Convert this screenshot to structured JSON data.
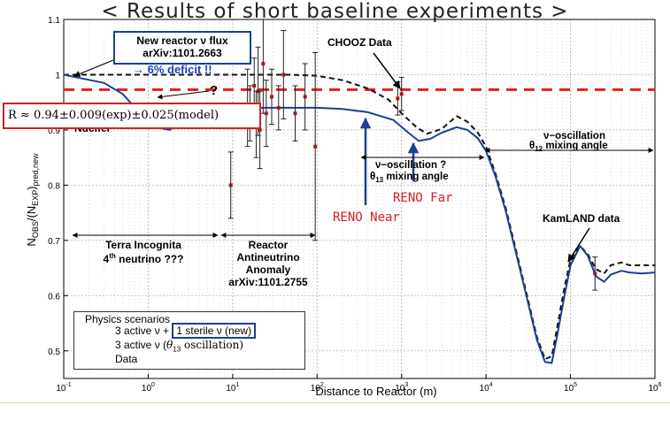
{
  "slide_title": "< Results of short baseline experiments >",
  "chart_data": {
    "type": "line",
    "title": "",
    "xlabel": "Distance to Reactor (m)",
    "ylabel_main": "N",
    "ylabel_sub1": "OBS",
    "ylabel_mid": "/(N",
    "ylabel_sub2": "EXP",
    "ylabel_sub3": ")",
    "ylabel_sub4": "pred,new",
    "xscale": "log",
    "xlim": [
      0.1,
      1000000
    ],
    "ylim": [
      0.45,
      1.1
    ],
    "grid": true,
    "x_ticks": [
      0.1,
      1,
      10,
      100,
      1000,
      10000,
      100000,
      1000000
    ],
    "x_tick_bases": [
      "10",
      "10",
      "10",
      "10",
      "10",
      "10",
      "10",
      "10"
    ],
    "x_tick_exps": [
      "-1",
      "0",
      "1",
      "2",
      "3",
      "4",
      "5",
      "6"
    ],
    "y_ticks": [
      0.5,
      0.6,
      0.7,
      0.8,
      0.9,
      1.0,
      1.1
    ],
    "y_tick_labels": [
      "0.5",
      "0.6",
      "0.7",
      "0.8",
      "0.9",
      "1",
      "1.1"
    ],
    "reference_line_y": 0.973,
    "series": [
      {
        "name": "3 active ν + 1 sterile ν (new)",
        "color": "#1c3f94",
        "style": "solid",
        "x": [
          0.1,
          0.3,
          0.5,
          0.8,
          1.2,
          1.8,
          2.5,
          4,
          6,
          10,
          20,
          50,
          100,
          200,
          400,
          800,
          1200,
          1600,
          2200,
          3000,
          4500,
          6000,
          8000,
          10000,
          13000,
          17000,
          22000,
          30000,
          40000,
          50000,
          60000,
          70000,
          85000,
          100000,
          130000,
          160000,
          200000,
          250000,
          300000,
          400000,
          500000,
          700000,
          1000000
        ],
        "y": [
          1.0,
          0.985,
          0.965,
          0.93,
          0.905,
          0.9,
          0.915,
          0.932,
          0.937,
          0.94,
          0.94,
          0.94,
          0.94,
          0.938,
          0.932,
          0.918,
          0.895,
          0.88,
          0.884,
          0.895,
          0.905,
          0.9,
          0.885,
          0.862,
          0.815,
          0.755,
          0.685,
          0.6,
          0.52,
          0.48,
          0.478,
          0.53,
          0.6,
          0.655,
          0.69,
          0.672,
          0.635,
          0.625,
          0.638,
          0.645,
          0.642,
          0.64,
          0.642
        ]
      },
      {
        "name": "3 active ν (θ13 oscillation)",
        "color": "#111111",
        "style": "dashed",
        "x": [
          0.1,
          0.5,
          1,
          5,
          10,
          50,
          100,
          200,
          400,
          700,
          1000,
          1500,
          2000,
          3000,
          4500,
          6000,
          8000,
          10000,
          13000,
          17000,
          22000,
          30000,
          40000,
          50000,
          60000,
          70000,
          85000,
          100000,
          130000,
          160000,
          200000,
          250000,
          300000,
          400000,
          500000,
          700000,
          1000000
        ],
        "y": [
          1.0,
          1.0,
          1.0,
          1.0,
          1.0,
          1.0,
          0.998,
          0.99,
          0.975,
          0.955,
          0.93,
          0.905,
          0.893,
          0.902,
          0.925,
          0.915,
          0.895,
          0.87,
          0.82,
          0.76,
          0.69,
          0.605,
          0.525,
          0.485,
          0.49,
          0.545,
          0.615,
          0.665,
          0.69,
          0.675,
          0.648,
          0.64,
          0.655,
          0.66,
          0.655,
          0.655,
          0.655
        ]
      }
    ],
    "data_points": {
      "name": "Data",
      "x": [
        9.5,
        15,
        16,
        18,
        19,
        20,
        21,
        23,
        25,
        29,
        35,
        40,
        55,
        72,
        95,
        900,
        1000,
        195000
      ],
      "y": [
        0.8,
        0.94,
        0.93,
        0.98,
        0.91,
        0.97,
        0.9,
        1.02,
        0.93,
        0.96,
        0.94,
        1.0,
        0.93,
        0.96,
        0.87,
        0.957,
        0.965,
        0.64
      ],
      "err": [
        0.06,
        0.07,
        0.05,
        0.05,
        0.06,
        0.08,
        0.07,
        0.09,
        0.06,
        0.05,
        0.04,
        0.08,
        0.05,
        0.06,
        0.17,
        0.03,
        0.03,
        0.03
      ]
    }
  },
  "annotations": {
    "flux_line1": "New reactor ν flux",
    "flux_line2": "arXiv:1101.2663",
    "deficit": "→ 6% deficit !!",
    "question": "?",
    "r_formula": "R ≈ 0.94±0.009(exp)±0.025(model)",
    "nucifer": "Nucifer",
    "chooz": "CHOOZ Data",
    "reno_near": "RENO Near",
    "reno_far": "RENO Far",
    "theta13_line1": "ν−oscillation ?",
    "theta13_line2": "θ",
    "theta13_sub": "13",
    "theta13_line2b": " mixing angle",
    "theta12_line1": "ν−oscillation",
    "theta12_line2": "θ",
    "theta12_sub": "12",
    "theta12_line2b": " mixing angle",
    "kamland": "KamLAND data",
    "terra1": "Terra Incognita",
    "terra2": "4",
    "terra2_sup": "th",
    "terra2b": " neutrino ???",
    "raa1": "Reactor",
    "raa2": "Antineutrino",
    "raa3": "Anomaly",
    "raa4": "arXiv:1101.2755"
  },
  "legend": {
    "title": "Physics scenarios",
    "item1a": "3 active ν + ",
    "item1b": "1 sterile ν (new)",
    "item2a": "3 active  ν (",
    "item2b": "θ",
    "item2sub": "13",
    "item2c": " oscillation)",
    "item3": "Data"
  },
  "colors": {
    "blue_curve": "#1c3f94",
    "red_dashed": "#e02020",
    "data_marker": "#a01818",
    "reno_text": "#d42020",
    "arrow_blue": "#1c3f94",
    "deficit_text": "#1c3fc4"
  }
}
